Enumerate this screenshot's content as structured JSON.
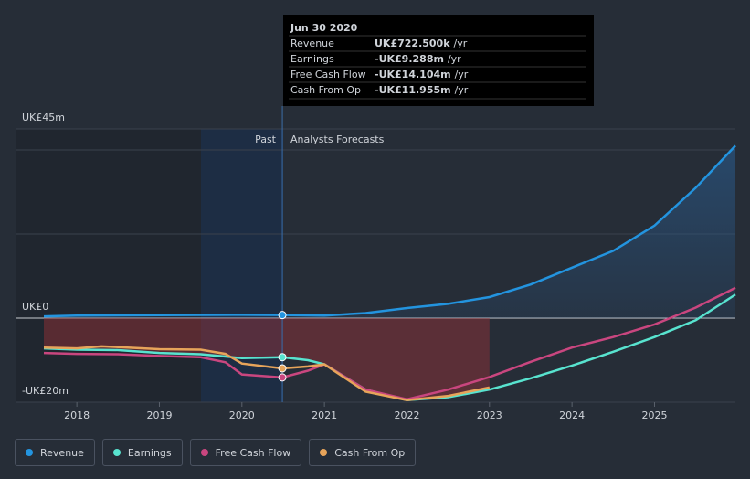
{
  "chart_data": {
    "type": "line",
    "past_label": "Past",
    "forecast_label": "Analysts Forecasts",
    "xlim": [
      2017.6,
      2025.98
    ],
    "xticks": [
      2018,
      2019,
      2020,
      2021,
      2022,
      2023,
      2024,
      2025
    ],
    "ylim": [
      -20,
      45
    ],
    "yticks": [
      {
        "value": 45,
        "label": "UK£45m"
      },
      {
        "value": 0,
        "label": "UK£0"
      },
      {
        "value": -20,
        "label": "-UK£20m"
      }
    ],
    "minor_gridlines": [
      40,
      20
    ],
    "series": [
      {
        "name": "Revenue",
        "color": "#2394df",
        "x": [
          2017.6,
          2018,
          2019,
          2020,
          2020.49,
          2021,
          2021.5,
          2022,
          2022.5,
          2023,
          2023.5,
          2024,
          2024.5,
          2025,
          2025.5,
          2025.98
        ],
        "values": [
          0.4,
          0.6,
          0.7,
          0.8,
          0.7225,
          0.6,
          1.2,
          2.4,
          3.4,
          5,
          8,
          12,
          16,
          22,
          31,
          41
        ]
      },
      {
        "name": "Earnings",
        "color": "#58e3cf",
        "x": [
          2017.6,
          2018,
          2018.5,
          2019,
          2019.5,
          2020,
          2020.49,
          2020.8,
          2021,
          2021.5,
          2022,
          2022.5,
          2023,
          2023.5,
          2024,
          2024.5,
          2025,
          2025.5,
          2025.98
        ],
        "values": [
          -7.2,
          -7.5,
          -7.6,
          -8.3,
          -8.6,
          -9.5,
          -9.288,
          -10,
          -11,
          -17,
          -19.5,
          -18.8,
          -17,
          -14.3,
          -11.3,
          -8,
          -4.5,
          -0.5,
          5.6
        ]
      },
      {
        "name": "Free Cash Flow",
        "color": "#c9467f",
        "x": [
          2017.6,
          2018,
          2018.5,
          2019,
          2019.5,
          2019.8,
          2020,
          2020.49,
          2020.8,
          2021,
          2021.5,
          2022,
          2022.5,
          2023,
          2023.5,
          2024,
          2024.5,
          2025,
          2025.5,
          2025.98
        ],
        "values": [
          -8.3,
          -8.5,
          -8.6,
          -9,
          -9.3,
          -10.5,
          -13.4,
          -14.104,
          -12.5,
          -11,
          -17,
          -19.3,
          -17,
          -14,
          -10.4,
          -7,
          -4.5,
          -1.5,
          2.5,
          7.2
        ]
      },
      {
        "name": "Cash From Op",
        "color": "#e7a45a",
        "x": [
          2017.6,
          2018,
          2018.3,
          2019,
          2019.5,
          2019.8,
          2020,
          2020.49,
          2020.8,
          2021,
          2021.5,
          2022,
          2022.5,
          2023
        ],
        "values": [
          -7,
          -7.2,
          -6.7,
          -7.4,
          -7.5,
          -8.5,
          -10.8,
          -11.955,
          -11.5,
          -11,
          -17.5,
          -19.5,
          -18.5,
          -16.5
        ]
      }
    ],
    "tooltip": {
      "title": "Jun 30 2020",
      "rows": [
        {
          "label": "Revenue",
          "value_label": "UK£722.500k",
          "suffix": "/yr"
        },
        {
          "label": "Earnings",
          "value_label": "-UK£9.288m",
          "suffix": "/yr"
        },
        {
          "label": "Free Cash Flow",
          "value_label": "-UK£14.104m",
          "suffix": "/yr"
        },
        {
          "label": "Cash From Op",
          "value_label": "-UK£11.955m",
          "suffix": "/yr"
        }
      ]
    }
  }
}
